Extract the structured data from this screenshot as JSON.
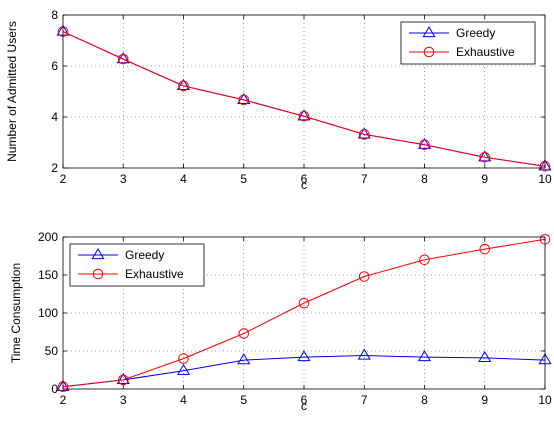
{
  "chart_data": [
    {
      "type": "line",
      "xlabel": "c",
      "ylabel": "Number of Admitted Users",
      "xlim": [
        2,
        10
      ],
      "ylim": [
        2,
        8
      ],
      "xticks": [
        2,
        3,
        4,
        5,
        6,
        7,
        8,
        9,
        10
      ],
      "yticks": [
        2,
        4,
        6,
        8
      ],
      "grid": true,
      "legend_position": "top-right",
      "x": [
        2,
        3,
        4,
        5,
        6,
        7,
        8,
        9,
        10
      ],
      "series": [
        {
          "name": "Greedy",
          "color": "#0000ff",
          "marker": "triangle",
          "values": [
            7.35,
            6.27,
            5.22,
            4.67,
            4.03,
            3.32,
            2.91,
            2.42,
            2.07
          ]
        },
        {
          "name": "Exhaustive",
          "color": "#ff0000",
          "marker": "circle",
          "values": [
            7.35,
            6.27,
            5.22,
            4.67,
            4.03,
            3.32,
            2.91,
            2.42,
            2.07
          ]
        }
      ]
    },
    {
      "type": "line",
      "xlabel": "c",
      "ylabel": "Time Consumption",
      "xlim": [
        2,
        10
      ],
      "ylim": [
        0,
        200
      ],
      "xticks": [
        2,
        3,
        4,
        5,
        6,
        7,
        8,
        9,
        10
      ],
      "yticks": [
        0,
        50,
        100,
        150,
        200
      ],
      "grid": true,
      "legend_position": "top-left",
      "x": [
        2,
        3,
        4,
        5,
        6,
        7,
        8,
        9,
        10
      ],
      "series": [
        {
          "name": "Greedy",
          "color": "#0000ff",
          "marker": "triangle",
          "values": [
            3,
            12,
            24,
            38,
            42,
            44,
            42,
            41,
            38
          ]
        },
        {
          "name": "Exhaustive",
          "color": "#ff0000",
          "marker": "circle",
          "values": [
            3,
            12,
            40,
            73,
            113,
            148,
            170,
            184,
            197
          ]
        }
      ]
    }
  ]
}
